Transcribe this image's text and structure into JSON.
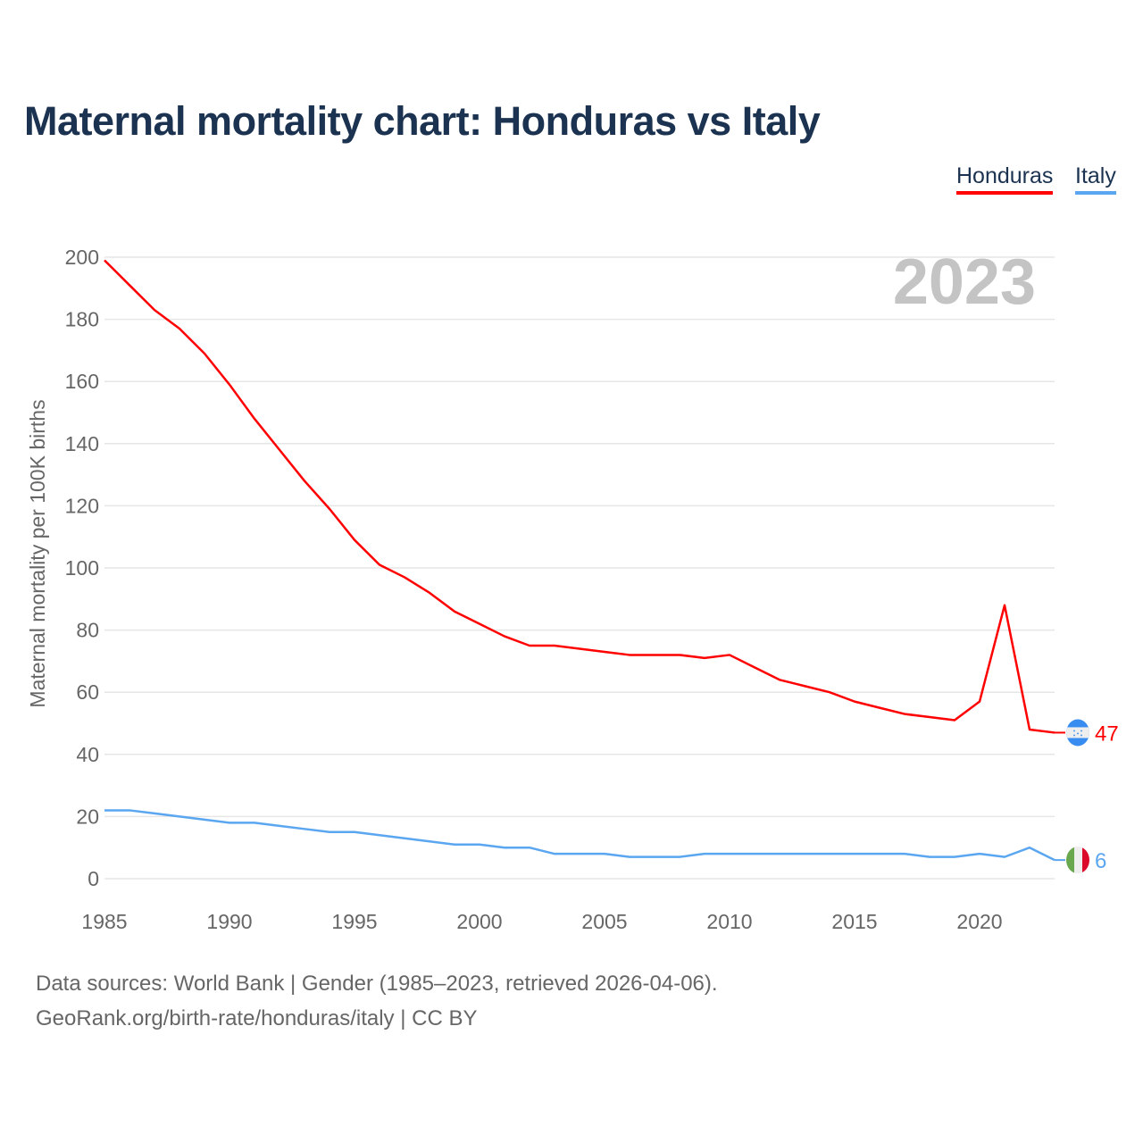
{
  "chart_data": {
    "type": "line",
    "title": "Maternal mortality chart: Honduras vs Italy",
    "ylabel": "Maternal mortality per 100K births",
    "xlabel": "",
    "year_watermark": "2023",
    "xlim": [
      1985,
      2023
    ],
    "ylim": [
      0,
      200
    ],
    "xticks": [
      1985,
      1990,
      1995,
      2000,
      2005,
      2010,
      2015,
      2020
    ],
    "yticks": [
      0,
      20,
      40,
      60,
      80,
      100,
      120,
      140,
      160,
      180,
      200
    ],
    "grid": true,
    "legend_position": "top-right",
    "x": [
      1985,
      1986,
      1987,
      1988,
      1989,
      1990,
      1991,
      1992,
      1993,
      1994,
      1995,
      1996,
      1997,
      1998,
      1999,
      2000,
      2001,
      2002,
      2003,
      2004,
      2005,
      2006,
      2007,
      2008,
      2009,
      2010,
      2011,
      2012,
      2013,
      2014,
      2015,
      2016,
      2017,
      2018,
      2019,
      2020,
      2021,
      2022,
      2023
    ],
    "series": [
      {
        "name": "Honduras",
        "color": "#ff0000",
        "end_label": "47",
        "values": [
          199,
          191,
          183,
          177,
          169,
          159,
          148,
          138,
          128,
          119,
          109,
          101,
          97,
          92,
          86,
          82,
          78,
          75,
          75,
          74,
          73,
          72,
          72,
          72,
          71,
          72,
          68,
          64,
          62,
          60,
          57,
          55,
          53,
          52,
          51,
          57,
          88,
          48,
          47
        ]
      },
      {
        "name": "Italy",
        "color": "#5aa6f0",
        "end_label": "6",
        "values": [
          22,
          22,
          21,
          20,
          19,
          18,
          18,
          17,
          16,
          15,
          15,
          14,
          13,
          12,
          11,
          11,
          10,
          10,
          8,
          8,
          8,
          7,
          7,
          7,
          8,
          8,
          8,
          8,
          8,
          8,
          8,
          8,
          8,
          7,
          7,
          8,
          7,
          10,
          6
        ]
      }
    ]
  },
  "footer": {
    "line1": "Data sources: World Bank | Gender (1985–2023, retrieved 2026-04-06).",
    "line2": "GeoRank.org/birth-rate/honduras/italy | CC BY"
  }
}
